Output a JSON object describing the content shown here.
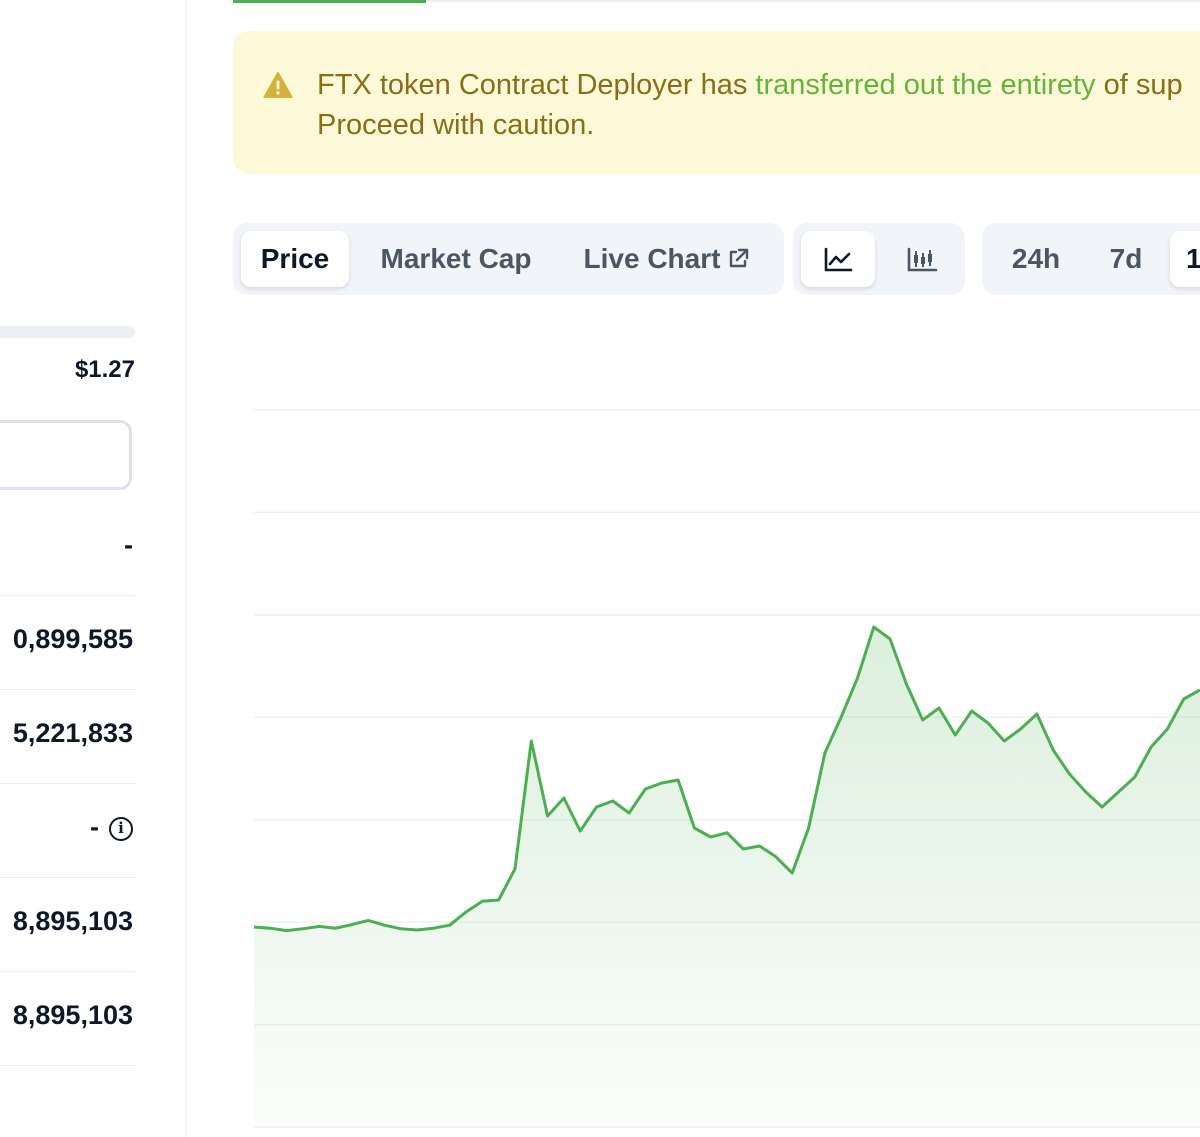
{
  "stats": {
    "range_value": "$1.27",
    "rows": [
      {
        "value": "-"
      },
      {
        "value": "0,899,585"
      },
      {
        "value": "5,221,833"
      },
      {
        "value": "-"
      },
      {
        "value": "8,895,103"
      },
      {
        "value": "8,895,103"
      }
    ]
  },
  "alert": {
    "text_before": "FTX token Contract Deployer has ",
    "link_text": "transferred out the entirety",
    "text_after": " of sup",
    "line2": "Proceed with caution.",
    "icon": "warning-triangle-icon",
    "colors": {
      "background": "#fdf9d8",
      "text": "#8a6d15",
      "link": "#63b53a"
    }
  },
  "tabs": {
    "price": "Price",
    "market_cap": "Market Cap",
    "live_chart": "Live Chart",
    "live_chart_icon": "external-link-icon"
  },
  "chart_type_toggle": {
    "line_icon": "line-chart-icon",
    "candle_icon": "candlestick-chart-icon"
  },
  "time_ranges": {
    "r24h": "24h",
    "r7d": "7d",
    "r_partial": "1"
  },
  "chart_data": {
    "type": "area",
    "series": [
      {
        "color": "#4caf50",
        "values": [
          0.55,
          0.53,
          0.49,
          0.52,
          0.56,
          0.53,
          0.59,
          0.66,
          0.58,
          0.52,
          0.5,
          0.53,
          0.58,
          0.8,
          0.98,
          1.0,
          1.52,
          3.65,
          2.4,
          2.7,
          2.15,
          2.55,
          2.65,
          2.45,
          2.85,
          2.95,
          3.0,
          2.2,
          2.05,
          2.12,
          1.85,
          1.9,
          1.72,
          1.45,
          2.2,
          3.45,
          4.05,
          4.7,
          5.55,
          5.35,
          4.6,
          4.0,
          4.2,
          3.75,
          4.15,
          3.95,
          3.65,
          3.85,
          4.1,
          3.5,
          3.1,
          2.8,
          2.55,
          2.8,
          3.05,
          3.55,
          3.85,
          4.35,
          4.5
        ]
      }
    ],
    "grid": true,
    "gridlines": 8
  }
}
